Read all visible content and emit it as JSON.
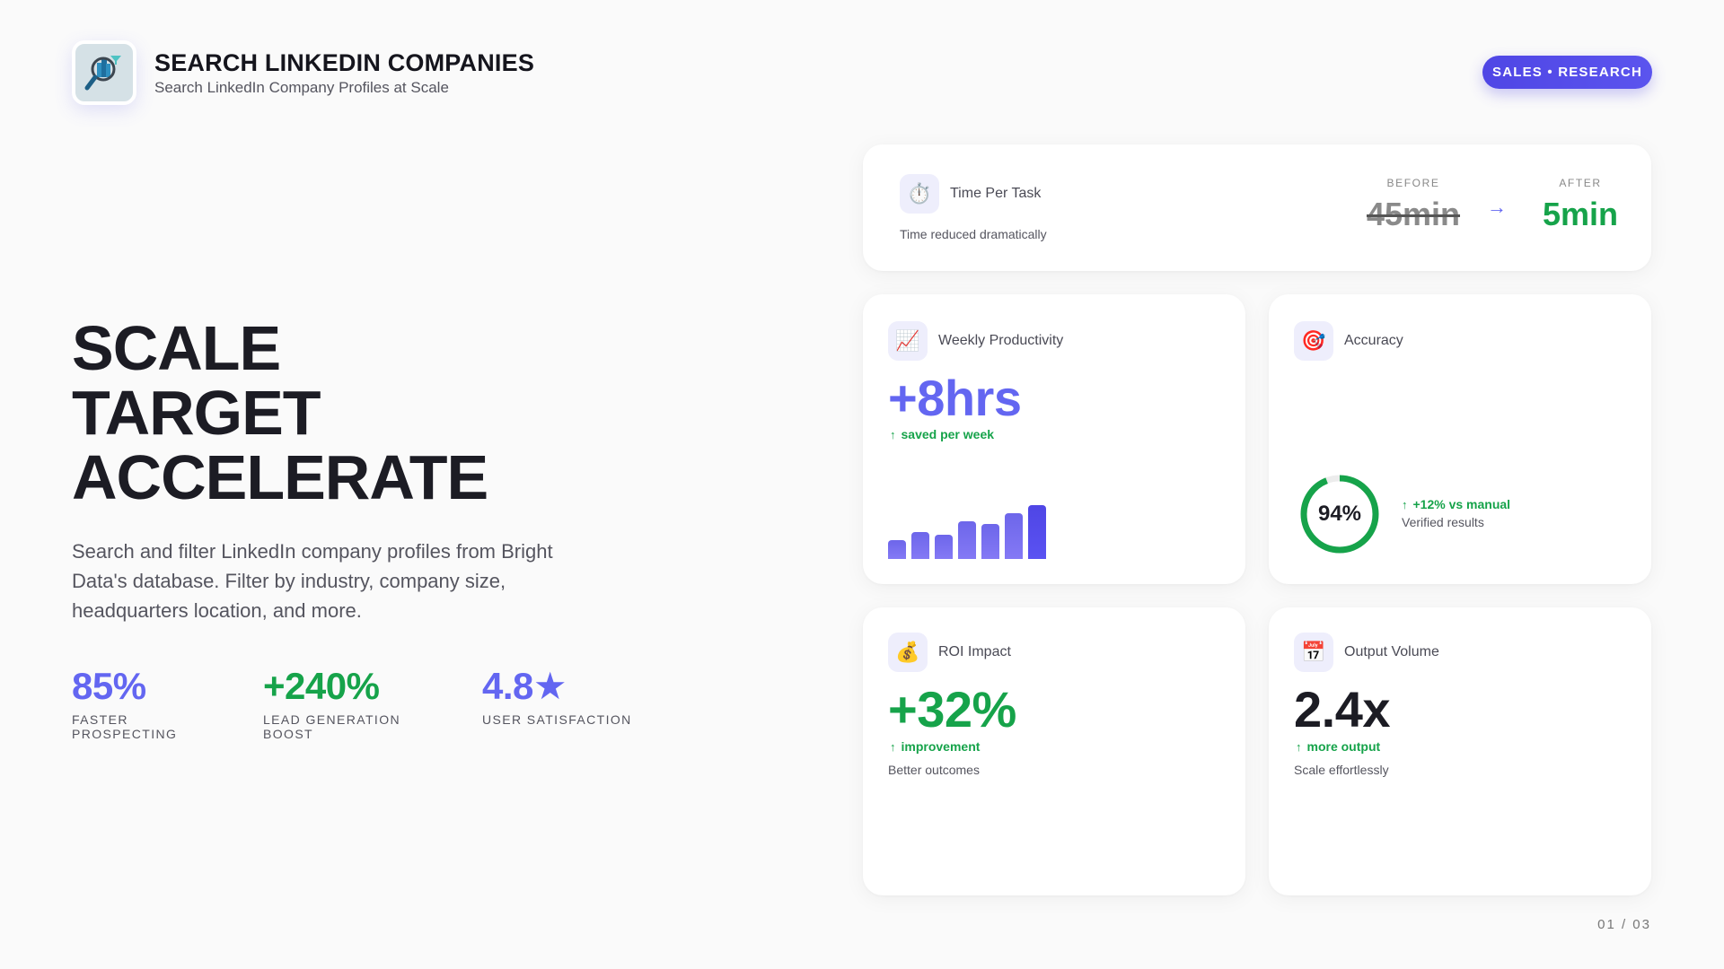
{
  "header": {
    "title": "SEARCH LINKEDIN COMPANIES",
    "subtitle": "Search LinkedIn Company Profiles at Scale",
    "logo_icon": "magnifier-buildings-filter-icon",
    "tag": "SALES • RESEARCH"
  },
  "hero": {
    "lines": [
      "SCALE",
      "TARGET",
      "ACCELERATE"
    ],
    "description": "Search and filter LinkedIn company profiles from Bright Data's database. Filter by industry, company size, headquarters location, and more."
  },
  "stats": [
    {
      "value": "85%",
      "label": "FASTER PROSPECTING",
      "color": "#6366f1"
    },
    {
      "value": "+240%",
      "label": "LEAD GENERATION BOOST",
      "color": "#16a34a"
    },
    {
      "value": "4.8★",
      "label": "USER SATISFACTION",
      "color": "#6366f1"
    }
  ],
  "cards": {
    "time_per_task": {
      "icon": "⏱️",
      "title": "Time Per Task",
      "subtitle": "Time reduced dramatically",
      "before_label": "BEFORE",
      "before_value": "45min",
      "arrow": "→",
      "after_label": "AFTER",
      "after_value": "5min"
    },
    "weekly_productivity": {
      "icon": "📈",
      "title": "Weekly Productivity",
      "value": "+8hrs",
      "trend_arrow": "↑",
      "trend": "saved per week",
      "bars": [
        21,
        30,
        27,
        42,
        39,
        51,
        60
      ]
    },
    "accuracy": {
      "icon": "🎯",
      "title": "Accuracy",
      "gauge_value": "94%",
      "gauge_percent": 94,
      "trend_arrow": "↑",
      "trend": "+12% vs manual",
      "subtitle": "Verified results"
    },
    "roi_impact": {
      "icon": "💰",
      "title": "ROI Impact",
      "value": "+32%",
      "trend_arrow": "↑",
      "trend": "improvement",
      "subtitle": "Better outcomes"
    },
    "output_volume": {
      "icon": "📅",
      "title": "Output Volume",
      "value": "2.4x",
      "trend_arrow": "↑",
      "trend": "more output",
      "subtitle": "Scale effortlessly"
    }
  },
  "colors": {
    "accent": "#6366f1",
    "accent_dark": "#4f46e5",
    "positive": "#16a34a",
    "text": "#1c1c24",
    "muted": "#55555f"
  },
  "pagination": {
    "label": "01 / 03"
  }
}
